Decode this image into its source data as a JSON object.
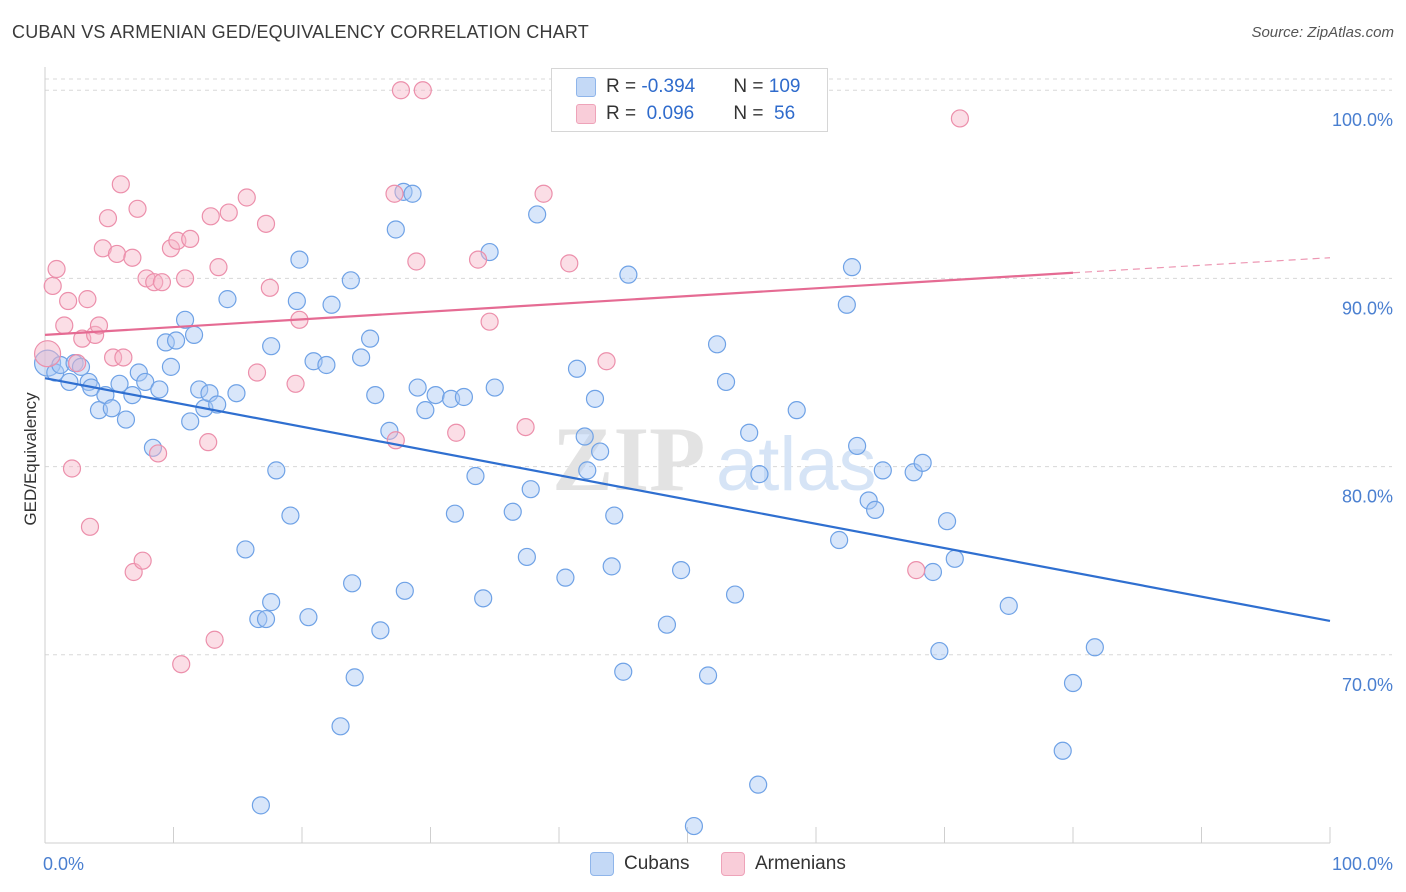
{
  "header": {
    "title": "CUBAN VS ARMENIAN GED/EQUIVALENCY CORRELATION CHART",
    "source": "Source: ZipAtlas.com"
  },
  "watermark": {
    "zip": "ZIP",
    "atlas": "atlas"
  },
  "legend": {
    "rows": [
      {
        "r_label": "R = ",
        "r_value": "-0.394",
        "n_label": "N = ",
        "n_value": "109",
        "color": "#a8c8f4"
      },
      {
        "r_label": "R = ",
        "r_value": " 0.096",
        "n_label": "N = ",
        "n_value": " 56",
        "color": "#f6b6c8"
      }
    ]
  },
  "bottom_legend": [
    {
      "label": "Cubans",
      "color": "#a8c8f4"
    },
    {
      "label": "Armenians",
      "color": "#f6b6c8"
    }
  ],
  "chart_data": {
    "type": "scatter",
    "title": "CUBAN VS ARMENIAN GED/EQUIVALENCY CORRELATION CHART",
    "xlabel": "",
    "ylabel": "GED/Equivalency",
    "xlim": [
      0,
      100
    ],
    "ylim": [
      60.0,
      101.5
    ],
    "x_tick_labels": [
      "0.0%",
      "100.0%"
    ],
    "y_ticks": [
      70,
      80,
      90,
      100
    ],
    "y_tick_labels": [
      "70.0%",
      "80.0%",
      "90.0%",
      "100.0%"
    ],
    "grid": "horizontal dashed",
    "legend_position": "top-center",
    "series": [
      {
        "name": "Cubans",
        "color": "#a8c8f4",
        "stroke": "#6fa2e6",
        "trend": {
          "color": "#2f6fd0",
          "x": [
            0,
            100
          ],
          "y": [
            84.7,
            71.8
          ]
        },
        "points": [
          [
            0.2,
            85.5
          ],
          [
            0.8,
            85.0
          ],
          [
            1.2,
            85.4
          ],
          [
            1.9,
            84.5
          ],
          [
            2.3,
            85.5
          ],
          [
            2.8,
            85.3
          ],
          [
            3.4,
            84.5
          ],
          [
            3.6,
            84.2
          ],
          [
            4.2,
            83.0
          ],
          [
            4.7,
            83.8
          ],
          [
            5.2,
            83.1
          ],
          [
            5.8,
            84.4
          ],
          [
            6.3,
            82.5
          ],
          [
            6.8,
            83.8
          ],
          [
            7.3,
            85.0
          ],
          [
            7.8,
            84.5
          ],
          [
            8.4,
            81.0
          ],
          [
            8.9,
            84.1
          ],
          [
            9.4,
            86.6
          ],
          [
            9.8,
            85.3
          ],
          [
            10.2,
            86.7
          ],
          [
            10.9,
            87.8
          ],
          [
            11.6,
            87.0
          ],
          [
            12.0,
            84.1
          ],
          [
            12.4,
            83.1
          ],
          [
            11.3,
            82.4
          ],
          [
            12.8,
            83.9
          ],
          [
            13.4,
            83.3
          ],
          [
            14.2,
            88.9
          ],
          [
            14.9,
            83.9
          ],
          [
            15.6,
            75.6
          ],
          [
            16.6,
            71.9
          ],
          [
            17.2,
            71.9
          ],
          [
            16.8,
            62.0
          ],
          [
            17.6,
            72.8
          ],
          [
            18.0,
            79.8
          ],
          [
            17.6,
            86.4
          ],
          [
            19.1,
            77.4
          ],
          [
            19.6,
            88.8
          ],
          [
            19.8,
            91.0
          ],
          [
            20.5,
            72.0
          ],
          [
            20.9,
            85.6
          ],
          [
            21.9,
            85.4
          ],
          [
            22.3,
            88.6
          ],
          [
            23.0,
            66.2
          ],
          [
            23.8,
            89.9
          ],
          [
            23.9,
            73.8
          ],
          [
            24.1,
            68.8
          ],
          [
            24.6,
            85.8
          ],
          [
            25.3,
            86.8
          ],
          [
            25.7,
            83.8
          ],
          [
            26.1,
            71.3
          ],
          [
            26.8,
            81.9
          ],
          [
            27.3,
            92.6
          ],
          [
            27.9,
            94.6
          ],
          [
            28.0,
            73.4
          ],
          [
            28.6,
            94.5
          ],
          [
            29.0,
            84.2
          ],
          [
            29.6,
            83.0
          ],
          [
            30.4,
            83.8
          ],
          [
            31.6,
            83.6
          ],
          [
            31.9,
            77.5
          ],
          [
            32.6,
            83.7
          ],
          [
            33.5,
            79.5
          ],
          [
            34.1,
            73.0
          ],
          [
            34.6,
            91.4
          ],
          [
            35.0,
            84.2
          ],
          [
            36.4,
            77.6
          ],
          [
            37.5,
            75.2
          ],
          [
            37.8,
            78.8
          ],
          [
            38.3,
            93.4
          ],
          [
            40.5,
            74.1
          ],
          [
            41.4,
            85.2
          ],
          [
            42.0,
            81.6
          ],
          [
            42.2,
            79.8
          ],
          [
            42.8,
            83.6
          ],
          [
            43.2,
            80.8
          ],
          [
            44.1,
            74.7
          ],
          [
            44.3,
            77.4
          ],
          [
            45.0,
            69.1
          ],
          [
            45.4,
            90.2
          ],
          [
            48.4,
            71.6
          ],
          [
            49.5,
            74.5
          ],
          [
            50.5,
            60.9
          ],
          [
            51.6,
            68.9
          ],
          [
            52.3,
            86.5
          ],
          [
            53.0,
            84.5
          ],
          [
            53.7,
            73.2
          ],
          [
            54.8,
            81.8
          ],
          [
            55.5,
            63.1
          ],
          [
            55.6,
            79.6
          ],
          [
            58.5,
            83.0
          ],
          [
            61.8,
            76.1
          ],
          [
            62.4,
            88.6
          ],
          [
            62.8,
            90.6
          ],
          [
            63.2,
            81.1
          ],
          [
            64.1,
            78.2
          ],
          [
            64.6,
            77.7
          ],
          [
            65.2,
            79.8
          ],
          [
            67.6,
            79.7
          ],
          [
            68.3,
            80.2
          ],
          [
            69.1,
            74.4
          ],
          [
            69.6,
            70.2
          ],
          [
            70.2,
            77.1
          ],
          [
            70.8,
            75.1
          ],
          [
            75.0,
            72.6
          ],
          [
            80.0,
            68.5
          ],
          [
            81.7,
            70.4
          ],
          [
            79.2,
            64.9
          ]
        ]
      },
      {
        "name": "Armenians",
        "color": "#f6b6c8",
        "stroke": "#ec8fab",
        "trend": {
          "color": "#e56b93",
          "x": [
            0,
            80
          ],
          "y": [
            87.0,
            90.3
          ],
          "dashed_x": [
            80,
            100
          ],
          "dashed_y": [
            90.3,
            91.1
          ]
        },
        "points": [
          [
            0.2,
            86.0
          ],
          [
            0.6,
            89.6
          ],
          [
            0.9,
            90.5
          ],
          [
            1.5,
            87.5
          ],
          [
            1.8,
            88.8
          ],
          [
            2.1,
            79.9
          ],
          [
            2.5,
            85.5
          ],
          [
            2.9,
            86.8
          ],
          [
            3.3,
            88.9
          ],
          [
            3.5,
            76.8
          ],
          [
            3.9,
            87.0
          ],
          [
            4.2,
            87.5
          ],
          [
            4.5,
            91.6
          ],
          [
            4.9,
            93.2
          ],
          [
            5.3,
            85.8
          ],
          [
            5.6,
            91.3
          ],
          [
            5.9,
            95.0
          ],
          [
            6.1,
            85.8
          ],
          [
            6.8,
            91.1
          ],
          [
            6.9,
            74.4
          ],
          [
            7.2,
            93.7
          ],
          [
            7.6,
            75.0
          ],
          [
            7.9,
            90.0
          ],
          [
            8.5,
            89.8
          ],
          [
            8.8,
            80.7
          ],
          [
            9.1,
            89.8
          ],
          [
            9.8,
            91.6
          ],
          [
            10.3,
            92.0
          ],
          [
            10.6,
            69.5
          ],
          [
            10.9,
            90.0
          ],
          [
            11.3,
            92.1
          ],
          [
            12.7,
            81.3
          ],
          [
            12.9,
            93.3
          ],
          [
            13.2,
            70.8
          ],
          [
            13.5,
            90.6
          ],
          [
            14.3,
            93.5
          ],
          [
            15.7,
            94.3
          ],
          [
            16.5,
            85.0
          ],
          [
            17.2,
            92.9
          ],
          [
            17.5,
            89.5
          ],
          [
            19.5,
            84.4
          ],
          [
            19.8,
            87.8
          ],
          [
            27.3,
            81.4
          ],
          [
            27.2,
            94.5
          ],
          [
            27.7,
            100.0
          ],
          [
            28.9,
            90.9
          ],
          [
            29.4,
            100.0
          ],
          [
            32.0,
            81.8
          ],
          [
            33.7,
            91.0
          ],
          [
            34.6,
            87.7
          ],
          [
            37.4,
            82.1
          ],
          [
            38.8,
            94.5
          ],
          [
            40.8,
            90.8
          ],
          [
            43.7,
            85.6
          ],
          [
            67.8,
            74.5
          ],
          [
            71.2,
            98.5
          ]
        ]
      }
    ]
  }
}
